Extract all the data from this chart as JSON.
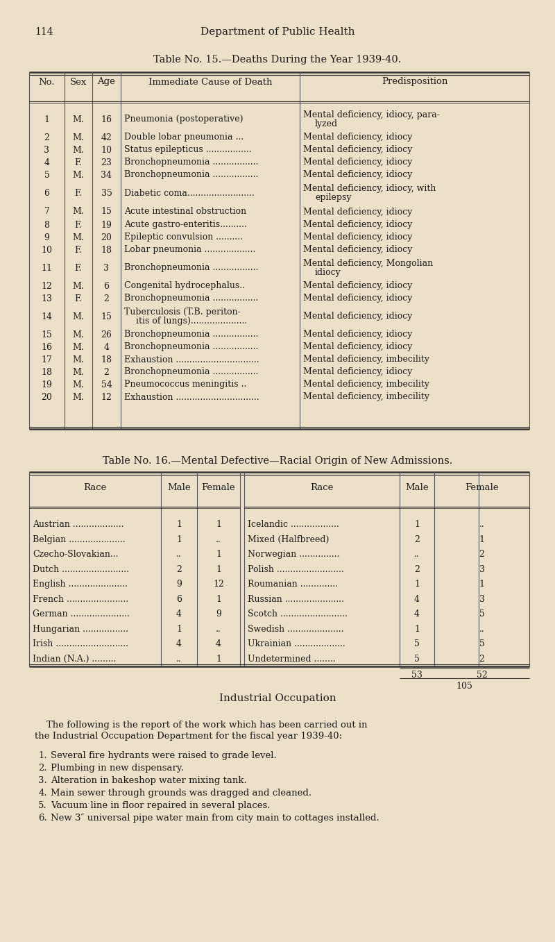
{
  "page_number": "114",
  "page_header": "Department of Public Health",
  "bg_color": "#ede0c8",
  "table15_title": "Table No. 15.—Deaths During the Year 1939-40.",
  "table15_rows": [
    [
      "1",
      "M.",
      "16",
      "Pneumonia (postoperative)",
      "Mental deficiency, idiocy, para-\n    lyzed"
    ],
    [
      "2",
      "M.",
      "42",
      "Double lobar pneumonia ...",
      "Mental deficiency, idiocy"
    ],
    [
      "3",
      "M.",
      "10",
      "Status epilepticus .................",
      "Mental deficiency, idiocy"
    ],
    [
      "4",
      "F.",
      "23",
      "Bronchopneumonia .................",
      "Mental deficiency, idiocy"
    ],
    [
      "5",
      "M.",
      "34",
      "Bronchopneumonia .................",
      "Mental deficiency, idiocy"
    ],
    [
      "6",
      "F.",
      "35",
      "Diabetic coma.........................",
      "Mental deficiency, idiocy, with\n    epilepsy"
    ],
    [
      "7",
      "M.",
      "15",
      "Acute intestinal obstruction",
      "Mental deficiency, idiocy"
    ],
    [
      "8",
      "F.",
      "19",
      "Acute gastro-enteritis..........",
      "Mental deficiency, idiocy"
    ],
    [
      "9",
      "M.",
      "20",
      "Epileptic convulsion ..........",
      "Mental deficiency, idiocy"
    ],
    [
      "10",
      "F.",
      "18",
      "Lobar pneumonia ...................",
      "Mental deficiency, idiocy"
    ],
    [
      "11",
      "F.",
      "3",
      "Bronchopneumonia .................",
      "Mental deficiency, Mongolian\n    idiocy"
    ],
    [
      "12",
      "M.",
      "6",
      "Congenital hydrocephalus..",
      "Mental deficiency, idiocy"
    ],
    [
      "13",
      "F.",
      "2",
      "Bronchopneumonia .................",
      "Mental deficiency, idiocy"
    ],
    [
      "14",
      "M.",
      "15",
      "Tuberculosis (T.B. periton-\n    itis of lungs).....................",
      "Mental deficiency, idiocy"
    ],
    [
      "15",
      "M.",
      "26",
      "Bronchopneumonia .................",
      "Mental deficiency, idiocy"
    ],
    [
      "16",
      "M.",
      "4",
      "Bronchopneumonia .................",
      "Mental deficiency, idiocy"
    ],
    [
      "17",
      "M.",
      "18",
      "Exhaustion ...............................",
      "Mental deficiency, imbecility"
    ],
    [
      "18",
      "M.",
      "2",
      "Bronchopneumonia .................",
      "Mental deficiency, idiocy"
    ],
    [
      "19",
      "M.",
      "54",
      "Pneumococcus meningitis ..",
      "Mental deficiency, imbecility"
    ],
    [
      "20",
      "M.",
      "12",
      "Exhaustion ...............................",
      "Mental deficiency, imbecility"
    ]
  ],
  "table16_title": "Table No. 16.—Mental Defective—Racial Origin of New Admissions.",
  "table16_rows_left": [
    [
      "Austrian ...................",
      "1",
      "1"
    ],
    [
      "Belgian .....................",
      "1",
      ".."
    ],
    [
      "Czecho-Slovakian...",
      "..",
      "1"
    ],
    [
      "Dutch .........................",
      "2",
      "1"
    ],
    [
      "English ......................",
      "9",
      "12"
    ],
    [
      "French .......................",
      "6",
      "1"
    ],
    [
      "German ......................",
      "4",
      "9"
    ],
    [
      "Hungarian .................",
      "1",
      ".."
    ],
    [
      "Irish ...........................",
      "4",
      "4"
    ],
    [
      "Indian (N.A.) .........",
      "..",
      "1"
    ]
  ],
  "table16_rows_right": [
    [
      "Icelandic ..................",
      "1",
      ".."
    ],
    [
      "Mixed (Halfbreed)",
      "2",
      "1"
    ],
    [
      "Norwegian ...............",
      "..",
      "2"
    ],
    [
      "Polish .........................",
      "2",
      "3"
    ],
    [
      "Roumanian ..............",
      "1",
      "1"
    ],
    [
      "Russian ......................",
      "4",
      "3"
    ],
    [
      "Scotch .........................",
      "4",
      "5"
    ],
    [
      "Swedish .....................",
      "1",
      ".."
    ],
    [
      "Ukrainian ...................",
      "5",
      "5"
    ],
    [
      "Undetermined ........",
      "5",
      "2"
    ]
  ],
  "table16_total_male": "53",
  "table16_total_female": "52",
  "table16_grand_total": "105",
  "industrial_title": "Industrial Occupation",
  "industrial_intro": "    The following is the report of the work which has been carried out in the Industrial Occupation Department for the fiscal year 1939-40:",
  "industrial_items": [
    "Several fire hydrants were raised to grade level.",
    "Plumbing in new dispensary.",
    "Alteration in bakeshop water mixing tank.",
    "Main sewer through grounds was dragged and cleaned.",
    "Vacuum line in floor repaired in several places.",
    "New 3″ universal pipe water main from city main to cottages installed."
  ]
}
